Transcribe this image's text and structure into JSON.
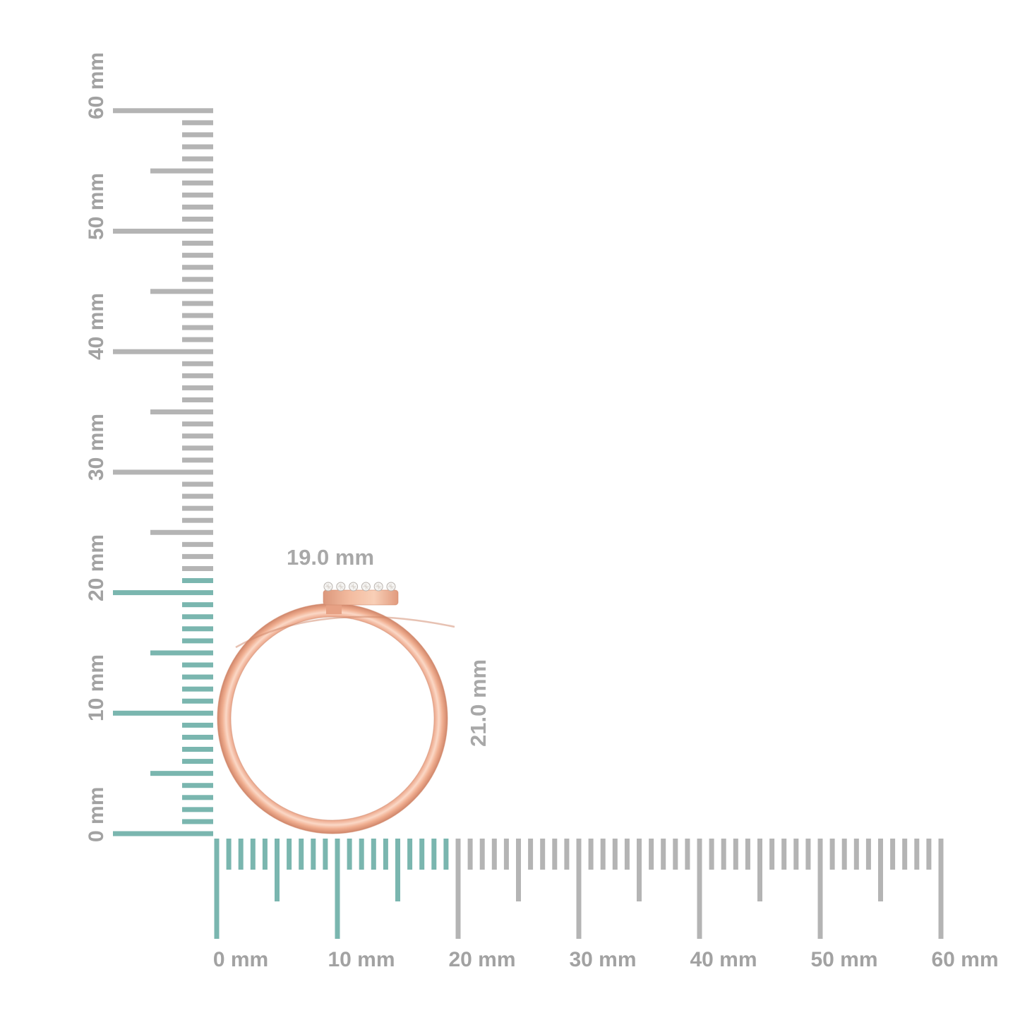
{
  "colors": {
    "background": "#ffffff",
    "highlight_teal": "#7ab6af",
    "tick_gray": "#b4b4b4",
    "label_gray": "#a2a2a2",
    "dim_label_gray": "#a8a8a8",
    "gold_edge": "#cf8568",
    "gold_dark": "#d0866a",
    "gold_mid": "#eba98c",
    "gold_light": "#fbd8c6",
    "diamond_white": "#f6f5f3",
    "diamond_edge": "#b9b3ae"
  },
  "vertical_ruler": {
    "unit": "mm",
    "min_mm": 0,
    "max_mm": 60,
    "minor_step_mm": 1,
    "mid_step_mm": 5,
    "major_step_mm": 10,
    "highlight_extent_mm": 21,
    "labels": [
      "0 mm",
      "10 mm",
      "20 mm",
      "30 mm",
      "40 mm",
      "50 mm",
      "60 mm"
    ]
  },
  "horizontal_ruler": {
    "unit": "mm",
    "min_mm": 0,
    "max_mm": 60,
    "minor_step_mm": 1,
    "mid_step_mm": 5,
    "major_step_mm": 10,
    "highlight_extent_mm": 19,
    "labels": [
      "0 mm",
      "10 mm",
      "20 mm",
      "30 mm",
      "40 mm",
      "50 mm",
      "60 mm"
    ]
  },
  "ring": {
    "width_label": "19.0 mm",
    "height_label": "21.0 mm",
    "diamond_count": 6
  }
}
